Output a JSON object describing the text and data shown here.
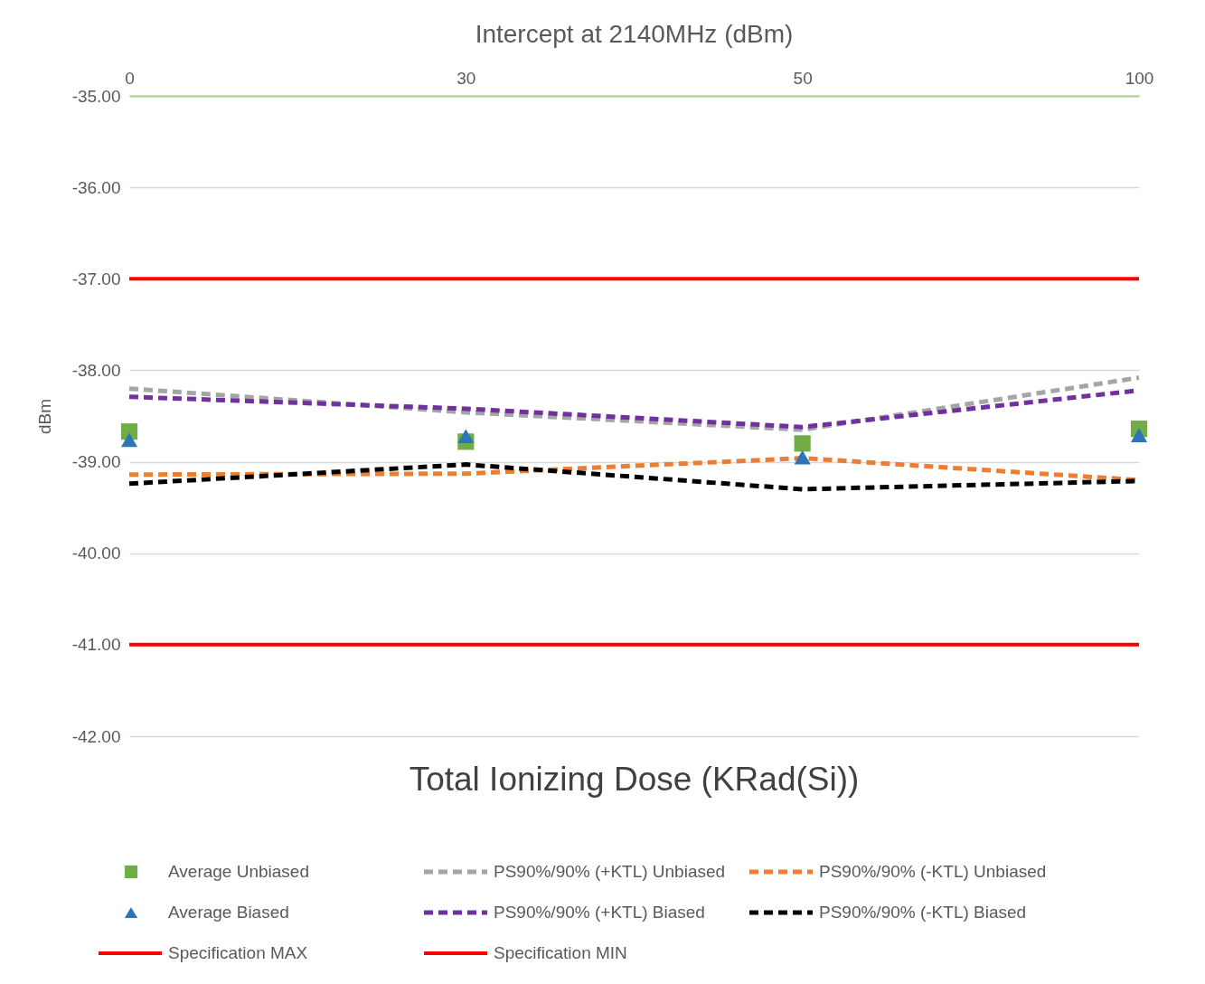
{
  "chart_data": {
    "type": "line",
    "title": "Intercept at 2140MHz (dBm)",
    "xlabel": "Total Ionizing Dose (KRad(Si))",
    "ylabel": "dBm",
    "categories": [
      "0",
      "30",
      "50",
      "100"
    ],
    "ylim": [
      -42,
      -35
    ],
    "yticks": [
      {
        "value": -35,
        "label": "-35.00"
      },
      {
        "value": -36,
        "label": "-36.00"
      },
      {
        "value": -37,
        "label": "-37.00"
      },
      {
        "value": -38,
        "label": "-38.00"
      },
      {
        "value": -39,
        "label": "-39.00"
      },
      {
        "value": -40,
        "label": "-40.00"
      },
      {
        "value": -41,
        "label": "-41.00"
      },
      {
        "value": -42,
        "label": "-42.00"
      }
    ],
    "grid": "y",
    "legend": "bottom",
    "series": [
      {
        "name": "Average Unbiased",
        "type": "scatter",
        "marker": "square",
        "color": "#70ad47",
        "values": [
          -38.67,
          -38.78,
          -38.8,
          -38.64
        ]
      },
      {
        "name": "PS90%/90% (+KTL) Unbiased",
        "line_style": "dashed",
        "color": "#a5a5a5",
        "values": [
          -38.2,
          -38.46,
          -38.65,
          -38.08
        ]
      },
      {
        "name": "PS90%/90% (-KTL) Unbiased",
        "type": "line",
        "line_style": "dashed",
        "color": "#ed7d31",
        "values": [
          -39.14,
          -39.13,
          -38.96,
          -39.2
        ]
      },
      {
        "name": "Average Biased",
        "type": "scatter",
        "marker": "triangle",
        "color": "#2e75b6",
        "values": [
          -38.76,
          -38.72,
          -38.95,
          -38.71
        ]
      },
      {
        "name": "PS90%/90% (+KTL) Biased",
        "type": "line",
        "line_style": "dashed",
        "color": "#7030a0",
        "values": [
          -38.29,
          -38.42,
          -38.62,
          -38.22
        ]
      },
      {
        "name": "PS90%/90% (-KTL) Biased",
        "type": "line",
        "line_style": "dashed",
        "color": "#000000",
        "values": [
          -39.24,
          -39.03,
          -39.3,
          -39.21
        ]
      },
      {
        "name": "Specification MAX",
        "type": "line",
        "line_style": "solid",
        "color": "#ff0000",
        "values": [
          -37,
          -37,
          -37,
          -37
        ]
      },
      {
        "name": "Specification MIN",
        "type": "line",
        "line_style": "solid",
        "color": "#ff0000",
        "values": [
          -41,
          -41,
          -41,
          -41
        ]
      }
    ]
  }
}
